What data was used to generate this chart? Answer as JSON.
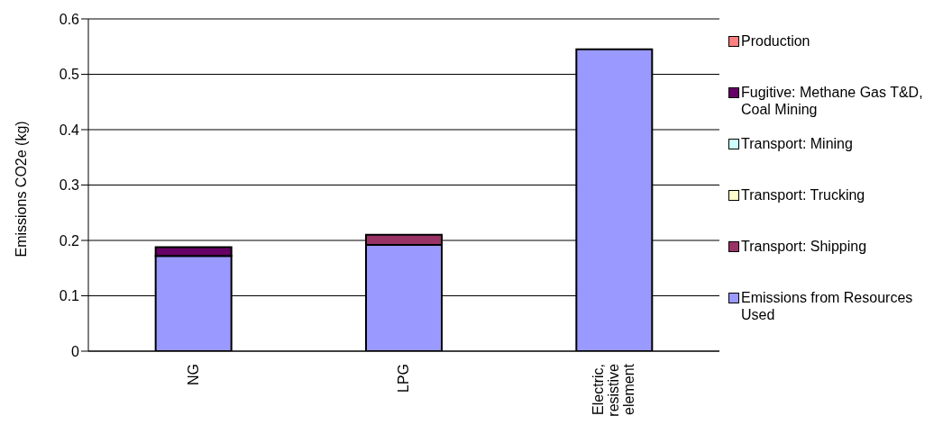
{
  "chart_data": {
    "type": "bar",
    "ylabel": "Emissions CO2e (kg)",
    "categories": [
      "NG",
      "LPG",
      "Electric, resistive element"
    ],
    "stacked": true,
    "series": [
      {
        "name": "Emissions from Resources Used",
        "color": "#9999ff",
        "values": [
          0.172,
          0.192,
          0.545
        ]
      },
      {
        "name": "Transport: Shipping",
        "color": "#993366",
        "values": [
          0,
          0.018,
          0
        ]
      },
      {
        "name": "Transport: Trucking",
        "color": "#ffffcc",
        "values": [
          0,
          0,
          0
        ]
      },
      {
        "name": "Transport: Mining",
        "color": "#ccffff",
        "values": [
          0,
          0,
          0
        ]
      },
      {
        "name": "Fugitive: Methane Gas T&D, Coal Mining",
        "color": "#660066",
        "values": [
          0.016,
          0,
          0
        ]
      },
      {
        "name": "Production",
        "color": "#ff8080",
        "values": [
          0,
          0,
          0
        ]
      }
    ],
    "ylim": [
      0,
      0.6
    ],
    "yticks": [
      0,
      0.1,
      0.2,
      0.3,
      0.4,
      0.5,
      0.6
    ],
    "grid": "y",
    "legend": "right"
  }
}
